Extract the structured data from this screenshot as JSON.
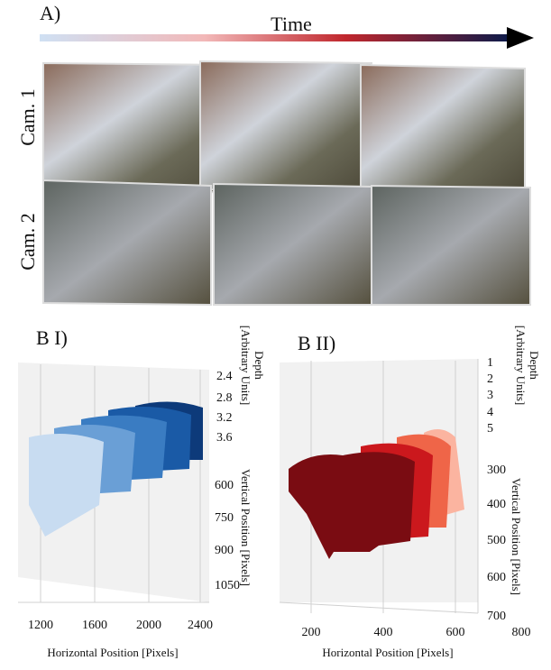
{
  "panel_a": {
    "label": "A)",
    "arrow_label": "Time",
    "rows": [
      "Cam. 1",
      "Cam. 2"
    ]
  },
  "panel_b1": {
    "label": "B I)",
    "depth_label": "Depth",
    "depth_units": "[Arbitrary Units]",
    "depth_ticks": [
      2.4,
      2.8,
      3.2,
      3.6
    ],
    "vertical_label": "Vertical Position [Pixels]",
    "vertical_ticks": [
      600,
      750,
      900,
      1050
    ],
    "horizontal_label": "Horizontal Position [Pixels]",
    "horizontal_ticks": [
      1200,
      1600,
      2000,
      2400
    ]
  },
  "panel_b2": {
    "label": "B II)",
    "depth_label": "Depth",
    "depth_units": "[Arbitrary Units]",
    "depth_ticks": [
      1,
      2,
      3,
      4,
      5
    ],
    "vertical_label": "Vertical Position [Pixels]",
    "vertical_ticks": [
      300,
      400,
      500,
      600,
      700
    ],
    "horizontal_label": "Horizontal Position [Pixels]",
    "horizontal_ticks": [
      200,
      400,
      600,
      800
    ]
  }
}
